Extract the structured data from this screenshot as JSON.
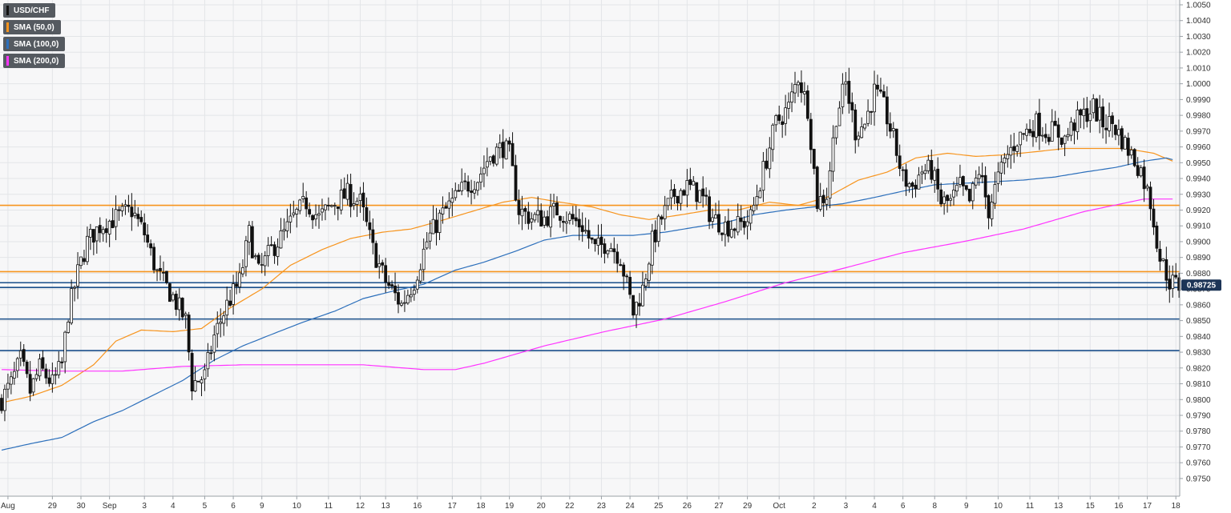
{
  "chart_data": {
    "type": "candlestick",
    "title": "",
    "symbol": "USD/CHF",
    "ylim": [
      0.9745,
      1.0053
    ],
    "y_ticks": [
      "1.0050",
      "1.0040",
      "1.0030",
      "1.0020",
      "1.0010",
      "1.0000",
      "0.9990",
      "0.9980",
      "0.9970",
      "0.9960",
      "0.9950",
      "0.9940",
      "0.9930",
      "0.9920",
      "0.9910",
      "0.9900",
      "0.9890",
      "0.9880",
      "0.9870",
      "0.9860",
      "0.9850",
      "0.9840",
      "0.9830",
      "0.9820",
      "0.9810",
      "0.9800",
      "0.9790",
      "0.9780",
      "0.9770",
      "0.9760",
      "0.9750"
    ],
    "x_ticks": [
      {
        "label": "Aug",
        "i": 2
      },
      {
        "label": "29",
        "i": 16
      },
      {
        "label": "30",
        "i": 25
      },
      {
        "label": "Sep",
        "i": 34
      },
      {
        "label": "3",
        "i": 45
      },
      {
        "label": "4",
        "i": 54
      },
      {
        "label": "5",
        "i": 64
      },
      {
        "label": "6",
        "i": 73
      },
      {
        "label": "9",
        "i": 82
      },
      {
        "label": "10",
        "i": 93
      },
      {
        "label": "11",
        "i": 103
      },
      {
        "label": "12",
        "i": 113
      },
      {
        "label": "13",
        "i": 121
      },
      {
        "label": "16",
        "i": 131
      },
      {
        "label": "17",
        "i": 142
      },
      {
        "label": "18",
        "i": 151
      },
      {
        "label": "19",
        "i": 160
      },
      {
        "label": "20",
        "i": 170
      },
      {
        "label": "22",
        "i": 179
      },
      {
        "label": "23",
        "i": 189
      },
      {
        "label": "24",
        "i": 198
      },
      {
        "label": "25",
        "i": 207
      },
      {
        "label": "26",
        "i": 216
      },
      {
        "label": "27",
        "i": 226
      },
      {
        "label": "29",
        "i": 235
      },
      {
        "label": "Oct",
        "i": 245
      },
      {
        "label": "2",
        "i": 256
      },
      {
        "label": "3",
        "i": 266
      },
      {
        "label": "4",
        "i": 275
      },
      {
        "label": "6",
        "i": 284
      },
      {
        "label": "8",
        "i": 294
      },
      {
        "label": "9",
        "i": 304
      },
      {
        "label": "10",
        "i": 314
      },
      {
        "label": "11",
        "i": 324
      },
      {
        "label": "13",
        "i": 333
      },
      {
        "label": "15",
        "i": 343
      },
      {
        "label": "16",
        "i": 352
      },
      {
        "label": "17",
        "i": 361
      },
      {
        "label": "18",
        "i": 370
      }
    ],
    "candle_count": 372,
    "last_price": "0.98725",
    "series": [
      {
        "name": "USD/CHF",
        "color": "#000000"
      },
      {
        "name": "SMA (50,0)",
        "color": "#f7941d"
      },
      {
        "name": "SMA (100,0)",
        "color": "#2c6fbb"
      },
      {
        "name": "SMA (200,0)",
        "color": "#ff33ff"
      }
    ],
    "close_anchors": [
      [
        0,
        0.98
      ],
      [
        3,
        0.981
      ],
      [
        6,
        0.9825
      ],
      [
        9,
        0.9805
      ],
      [
        12,
        0.982
      ],
      [
        16,
        0.981
      ],
      [
        19,
        0.9822
      ],
      [
        21,
        0.9855
      ],
      [
        24,
        0.988
      ],
      [
        27,
        0.99
      ],
      [
        31,
        0.991
      ],
      [
        36,
        0.9915
      ],
      [
        41,
        0.992
      ],
      [
        45,
        0.9905
      ],
      [
        49,
        0.988
      ],
      [
        54,
        0.9865
      ],
      [
        58,
        0.985
      ],
      [
        60,
        0.981
      ],
      [
        64,
        0.9815
      ],
      [
        67,
        0.984
      ],
      [
        71,
        0.986
      ],
      [
        75,
        0.9875
      ],
      [
        78,
        0.9905
      ],
      [
        81,
        0.988
      ],
      [
        85,
        0.9895
      ],
      [
        89,
        0.9905
      ],
      [
        92,
        0.9915
      ],
      [
        96,
        0.9925
      ],
      [
        100,
        0.9915
      ],
      [
        105,
        0.9925
      ],
      [
        109,
        0.993
      ],
      [
        113,
        0.9925
      ],
      [
        117,
        0.9895
      ],
      [
        121,
        0.9875
      ],
      [
        126,
        0.986
      ],
      [
        130,
        0.9875
      ],
      [
        134,
        0.99
      ],
      [
        138,
        0.9915
      ],
      [
        142,
        0.9925
      ],
      [
        146,
        0.9935
      ],
      [
        150,
        0.994
      ],
      [
        154,
        0.9955
      ],
      [
        158,
        0.996
      ],
      [
        160,
        0.9955
      ],
      [
        163,
        0.992
      ],
      [
        167,
        0.9915
      ],
      [
        171,
        0.9915
      ],
      [
        175,
        0.992
      ],
      [
        179,
        0.9915
      ],
      [
        183,
        0.991
      ],
      [
        187,
        0.9895
      ],
      [
        191,
        0.99
      ],
      [
        195,
        0.989
      ],
      [
        199,
        0.9855
      ],
      [
        202,
        0.987
      ],
      [
        205,
        0.99
      ],
      [
        208,
        0.9915
      ],
      [
        212,
        0.993
      ],
      [
        216,
        0.9935
      ],
      [
        220,
        0.993
      ],
      [
        224,
        0.9915
      ],
      [
        228,
        0.991
      ],
      [
        232,
        0.991
      ],
      [
        236,
        0.9915
      ],
      [
        240,
        0.9945
      ],
      [
        244,
        0.9975
      ],
      [
        248,
        0.9985
      ],
      [
        251,
        1.0005
      ],
      [
        254,
        0.9985
      ],
      [
        257,
        0.9925
      ],
      [
        260,
        0.993
      ],
      [
        263,
        0.998
      ],
      [
        266,
        1.0
      ],
      [
        269,
        0.997
      ],
      [
        272,
        0.9975
      ],
      [
        275,
        0.9995
      ],
      [
        278,
        0.9985
      ],
      [
        281,
        0.9965
      ],
      [
        284,
        0.994
      ],
      [
        287,
        0.9935
      ],
      [
        290,
        0.9945
      ],
      [
        293,
        0.9945
      ],
      [
        296,
        0.9925
      ],
      [
        299,
        0.9925
      ],
      [
        302,
        0.9935
      ],
      [
        305,
        0.9925
      ],
      [
        308,
        0.9945
      ],
      [
        311,
        0.992
      ],
      [
        314,
        0.994
      ],
      [
        317,
        0.9955
      ],
      [
        320,
        0.9965
      ],
      [
        323,
        0.997
      ],
      [
        326,
        0.9975
      ],
      [
        329,
        0.997
      ],
      [
        332,
        0.997
      ],
      [
        335,
        0.9965
      ],
      [
        338,
        0.9975
      ],
      [
        341,
        0.998
      ],
      [
        344,
        0.9985
      ],
      [
        347,
        0.9975
      ],
      [
        350,
        0.9975
      ],
      [
        353,
        0.9965
      ],
      [
        356,
        0.9955
      ],
      [
        359,
        0.9945
      ],
      [
        362,
        0.9925
      ],
      [
        365,
        0.989
      ],
      [
        368,
        0.9875
      ],
      [
        371,
        0.9872
      ]
    ],
    "sma_50": [
      [
        0,
        0.9798
      ],
      [
        9,
        0.9802
      ],
      [
        19,
        0.9809
      ],
      [
        29,
        0.9822
      ],
      [
        36,
        0.9837
      ],
      [
        44,
        0.9844
      ],
      [
        54,
        0.9843
      ],
      [
        63,
        0.9845
      ],
      [
        72,
        0.9858
      ],
      [
        82,
        0.987
      ],
      [
        91,
        0.9885
      ],
      [
        101,
        0.9895
      ],
      [
        110,
        0.9902
      ],
      [
        120,
        0.9906
      ],
      [
        129,
        0.9908
      ],
      [
        138,
        0.9913
      ],
      [
        148,
        0.9919
      ],
      [
        158,
        0.9925
      ],
      [
        167,
        0.9928
      ],
      [
        176,
        0.9925
      ],
      [
        186,
        0.9922
      ],
      [
        195,
        0.9917
      ],
      [
        204,
        0.9914
      ],
      [
        214,
        0.9917
      ],
      [
        223,
        0.992
      ],
      [
        232,
        0.992
      ],
      [
        242,
        0.9925
      ],
      [
        251,
        0.9923
      ],
      [
        260,
        0.9928
      ],
      [
        270,
        0.9939
      ],
      [
        279,
        0.9944
      ],
      [
        288,
        0.9953
      ],
      [
        298,
        0.9956
      ],
      [
        307,
        0.9954
      ],
      [
        316,
        0.9955
      ],
      [
        326,
        0.9957
      ],
      [
        335,
        0.9959
      ],
      [
        344,
        0.9959
      ],
      [
        354,
        0.9959
      ],
      [
        363,
        0.9956
      ],
      [
        369,
        0.9951
      ]
    ],
    "sma_100": [
      [
        0,
        0.9768
      ],
      [
        9,
        0.9772
      ],
      [
        19,
        0.9776
      ],
      [
        29,
        0.9786
      ],
      [
        38,
        0.9793
      ],
      [
        48,
        0.9803
      ],
      [
        57,
        0.9812
      ],
      [
        67,
        0.9825
      ],
      [
        76,
        0.9834
      ],
      [
        86,
        0.9842
      ],
      [
        95,
        0.9849
      ],
      [
        105,
        0.9856
      ],
      [
        114,
        0.9864
      ],
      [
        124,
        0.9869
      ],
      [
        133,
        0.9873
      ],
      [
        143,
        0.9882
      ],
      [
        152,
        0.9887
      ],
      [
        162,
        0.9894
      ],
      [
        171,
        0.9901
      ],
      [
        180,
        0.9904
      ],
      [
        190,
        0.9904
      ],
      [
        199,
        0.9904
      ],
      [
        209,
        0.9906
      ],
      [
        218,
        0.9909
      ],
      [
        228,
        0.9912
      ],
      [
        237,
        0.9917
      ],
      [
        247,
        0.992
      ],
      [
        256,
        0.9922
      ],
      [
        265,
        0.9924
      ],
      [
        275,
        0.9928
      ],
      [
        284,
        0.9932
      ],
      [
        294,
        0.9936
      ],
      [
        303,
        0.9937
      ],
      [
        313,
        0.9938
      ],
      [
        322,
        0.9939
      ],
      [
        332,
        0.9941
      ],
      [
        341,
        0.9944
      ],
      [
        351,
        0.9947
      ],
      [
        360,
        0.9951
      ],
      [
        367,
        0.9953
      ],
      [
        369,
        0.9952
      ]
    ],
    "sma_200": [
      [
        0,
        0.9819
      ],
      [
        19,
        0.9818
      ],
      [
        38,
        0.9818
      ],
      [
        57,
        0.9821
      ],
      [
        76,
        0.9822
      ],
      [
        95,
        0.9822
      ],
      [
        114,
        0.9822
      ],
      [
        133,
        0.9819
      ],
      [
        143,
        0.9819
      ],
      [
        152,
        0.9823
      ],
      [
        171,
        0.9834
      ],
      [
        190,
        0.9843
      ],
      [
        209,
        0.9851
      ],
      [
        228,
        0.9862
      ],
      [
        247,
        0.9874
      ],
      [
        265,
        0.9883
      ],
      [
        284,
        0.9893
      ],
      [
        303,
        0.99
      ],
      [
        322,
        0.9908
      ],
      [
        341,
        0.9919
      ],
      [
        360,
        0.9927
      ],
      [
        369,
        0.9927
      ]
    ],
    "levels": [
      {
        "value": 0.9923,
        "color": "#f7941d"
      },
      {
        "value": 0.9881,
        "color": "#f7941d"
      },
      {
        "value": 0.9874,
        "color": "#1a4f8a"
      },
      {
        "value": 0.9871,
        "color": "#1a4f8a"
      },
      {
        "value": 0.9851,
        "color": "#1a4f8a"
      },
      {
        "value": 0.9831,
        "color": "#1a4f8a"
      }
    ],
    "grid": true,
    "legend_position": "top-left"
  }
}
